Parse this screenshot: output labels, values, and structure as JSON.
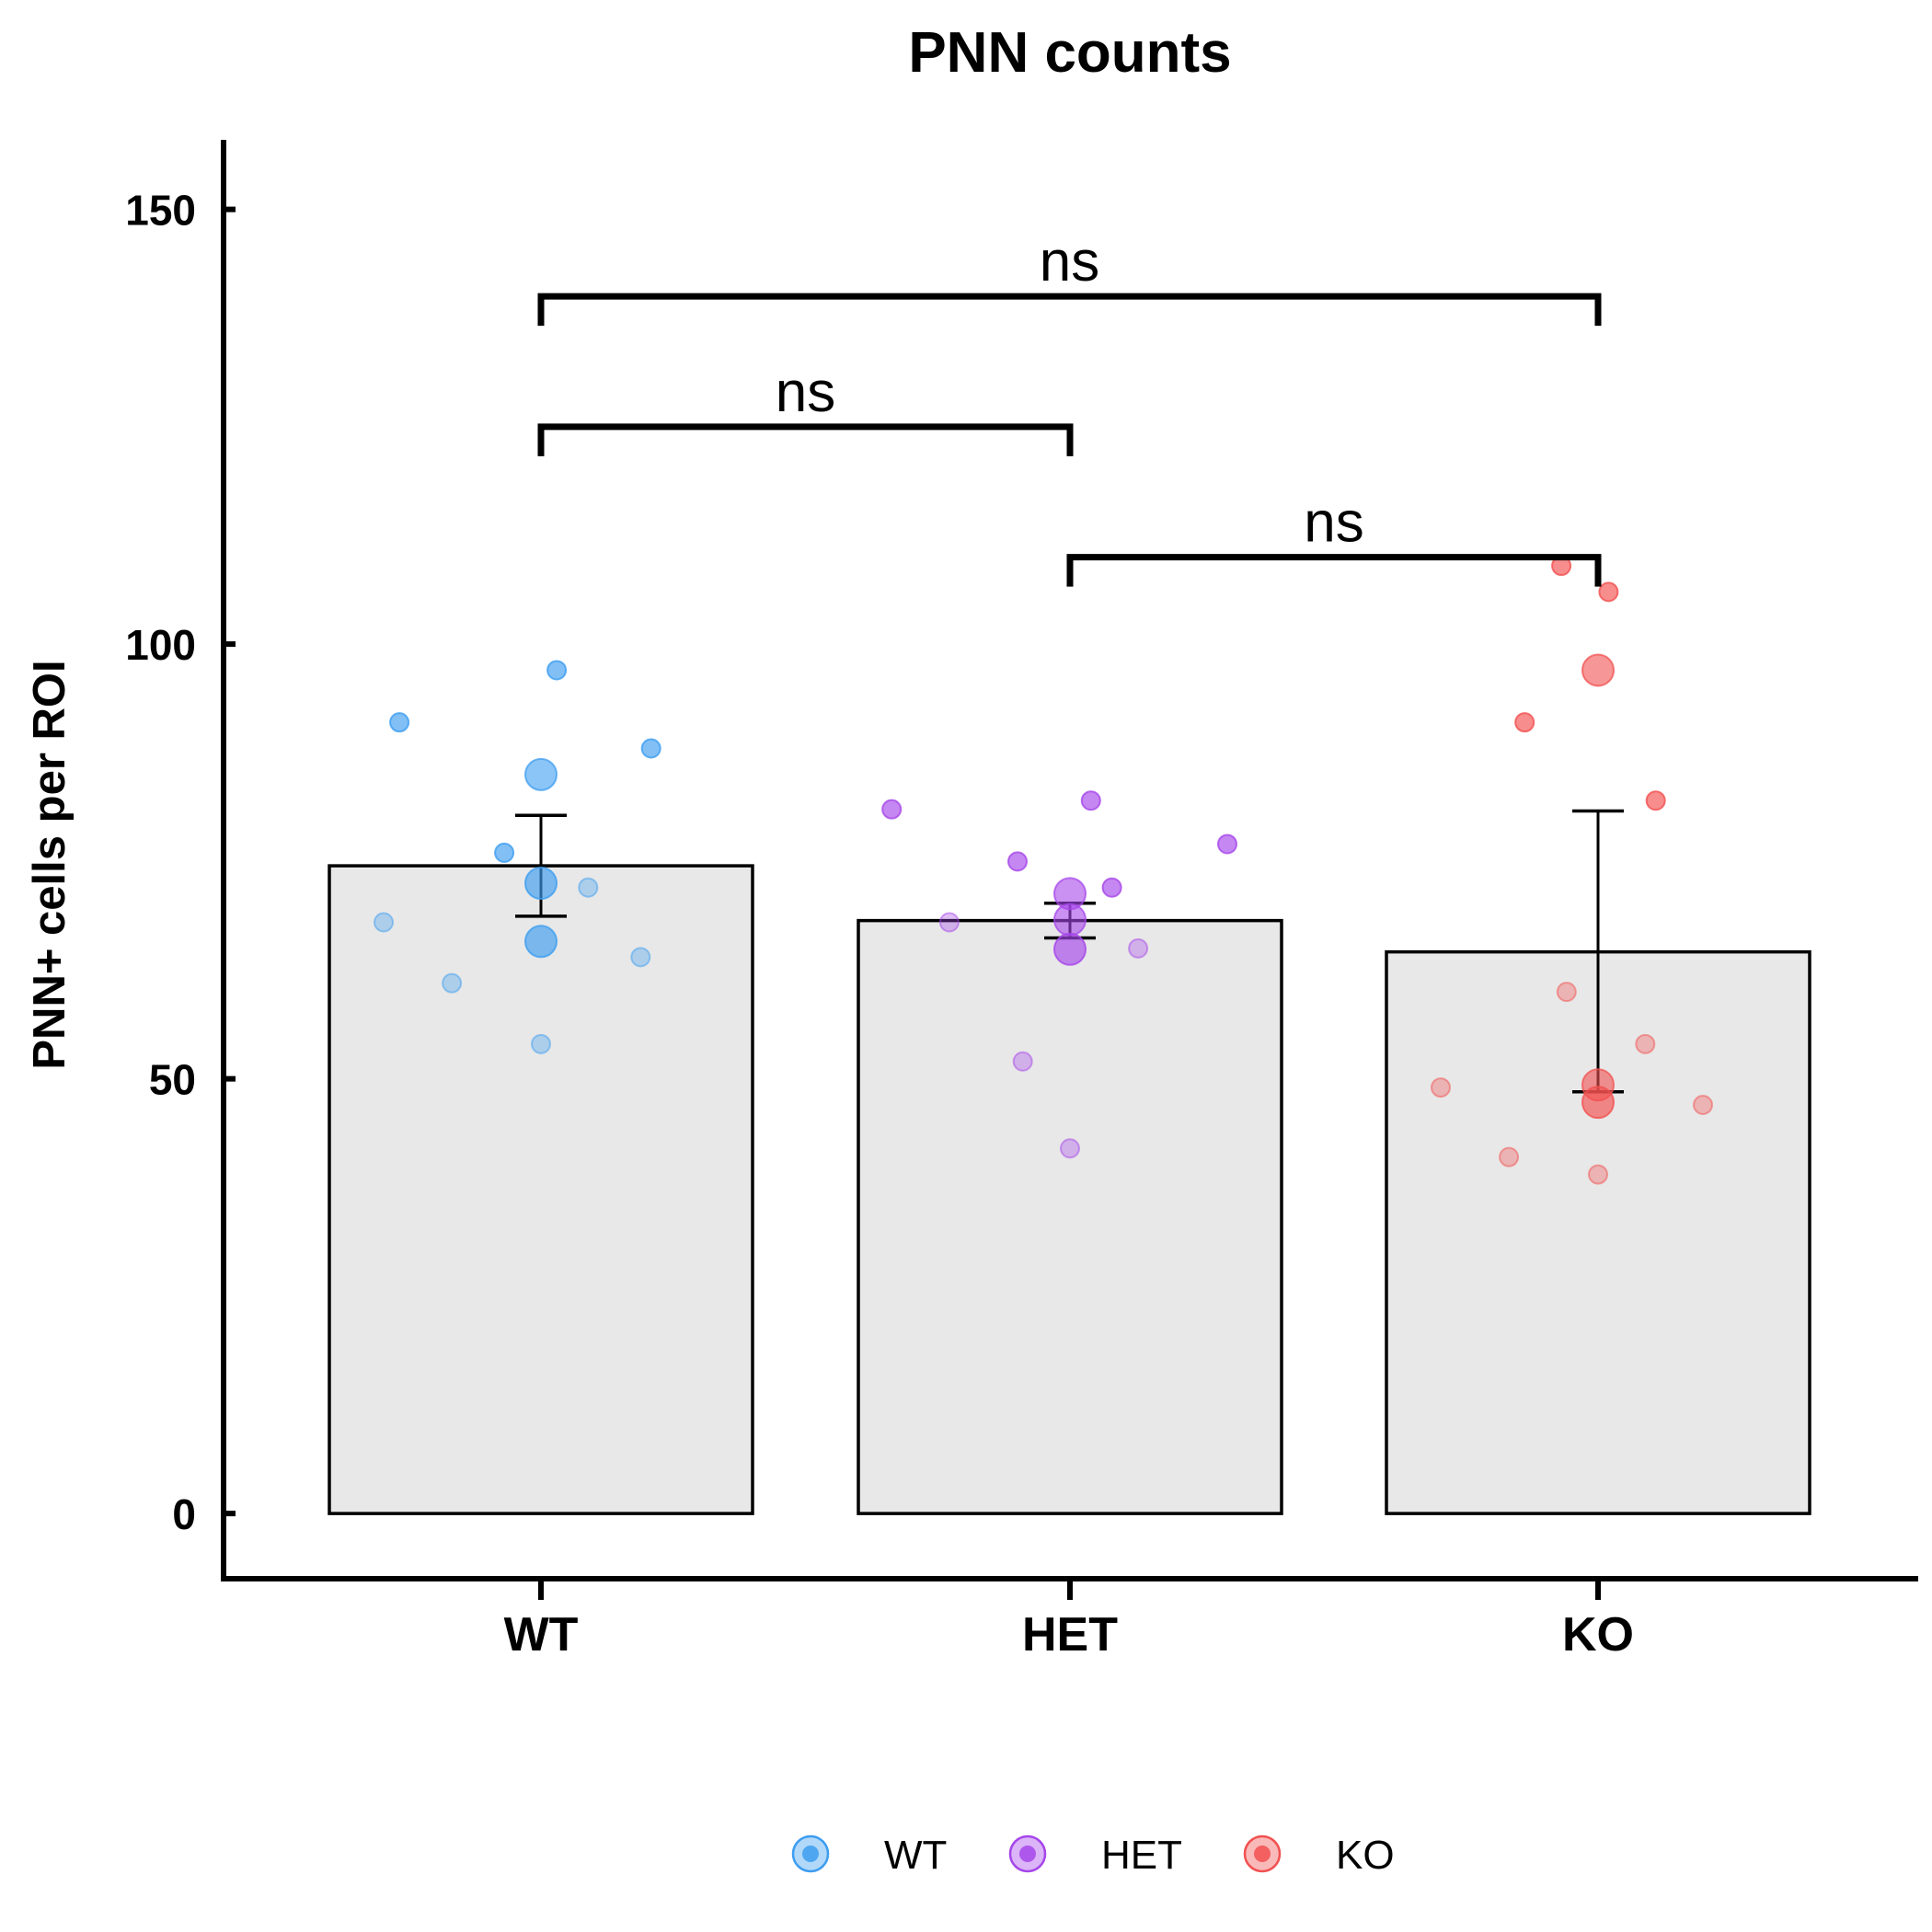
{
  "chart_data": {
    "type": "bar",
    "title": "PNN counts",
    "xlabel": "",
    "ylabel": "PNN+ cells per ROI",
    "ylim": [
      -7.5,
      158
    ],
    "yticks": [
      0,
      50,
      100,
      150
    ],
    "categories": [
      "WT",
      "HET",
      "KO"
    ],
    "colors": {
      "WT": "#3d9df0",
      "HET": "#a646ea",
      "KO": "#f25050"
    },
    "bar_fill": "#e8e8e8",
    "bars": [
      {
        "name": "WT",
        "mean": 74.5,
        "err_low": 68.7,
        "err_high": 80.3
      },
      {
        "name": "HET",
        "mean": 68.2,
        "err_low": 66.2,
        "err_high": 70.2
      },
      {
        "name": "KO",
        "mean": 64.6,
        "err_low": 48.5,
        "err_high": 80.8
      }
    ],
    "points": [
      {
        "group": "WT",
        "x": -0.27,
        "y": 91,
        "big": false,
        "opacity": 0.65
      },
      {
        "group": "WT",
        "x": 0.03,
        "y": 97,
        "big": false,
        "opacity": 0.65
      },
      {
        "group": "WT",
        "x": 0.21,
        "y": 88,
        "big": false,
        "opacity": 0.65
      },
      {
        "group": "WT",
        "x": 0.0,
        "y": 85,
        "big": true,
        "opacity": 0.6
      },
      {
        "group": "WT",
        "x": -0.07,
        "y": 76,
        "big": false,
        "opacity": 0.65
      },
      {
        "group": "WT",
        "x": 0.0,
        "y": 72.5,
        "big": true,
        "opacity": 0.65
      },
      {
        "group": "WT",
        "x": 0.09,
        "y": 72,
        "big": false,
        "opacity": 0.35
      },
      {
        "group": "WT",
        "x": -0.3,
        "y": 68,
        "big": false,
        "opacity": 0.35
      },
      {
        "group": "WT",
        "x": 0.0,
        "y": 65.8,
        "big": true,
        "opacity": 0.65
      },
      {
        "group": "WT",
        "x": 0.19,
        "y": 64,
        "big": false,
        "opacity": 0.35
      },
      {
        "group": "WT",
        "x": -0.17,
        "y": 61,
        "big": false,
        "opacity": 0.35
      },
      {
        "group": "WT",
        "x": 0.0,
        "y": 54,
        "big": false,
        "opacity": 0.35
      },
      {
        "group": "HET",
        "x": -0.34,
        "y": 81,
        "big": false,
        "opacity": 0.65
      },
      {
        "group": "HET",
        "x": 0.04,
        "y": 82,
        "big": false,
        "opacity": 0.65
      },
      {
        "group": "HET",
        "x": 0.3,
        "y": 77,
        "big": false,
        "opacity": 0.65
      },
      {
        "group": "HET",
        "x": -0.1,
        "y": 75,
        "big": false,
        "opacity": 0.65
      },
      {
        "group": "HET",
        "x": 0.08,
        "y": 72,
        "big": false,
        "opacity": 0.65
      },
      {
        "group": "HET",
        "x": 0.0,
        "y": 71.3,
        "big": true,
        "opacity": 0.6
      },
      {
        "group": "HET",
        "x": 0.0,
        "y": 68.3,
        "big": true,
        "opacity": 0.6
      },
      {
        "group": "HET",
        "x": -0.23,
        "y": 68,
        "big": false,
        "opacity": 0.35
      },
      {
        "group": "HET",
        "x": 0.0,
        "y": 64.9,
        "big": true,
        "opacity": 0.65
      },
      {
        "group": "HET",
        "x": 0.13,
        "y": 65,
        "big": false,
        "opacity": 0.35
      },
      {
        "group": "HET",
        "x": -0.09,
        "y": 52,
        "big": false,
        "opacity": 0.35
      },
      {
        "group": "HET",
        "x": 0.0,
        "y": 42,
        "big": false,
        "opacity": 0.35
      },
      {
        "group": "KO",
        "x": -0.07,
        "y": 109,
        "big": false,
        "opacity": 0.65
      },
      {
        "group": "KO",
        "x": 0.02,
        "y": 106,
        "big": false,
        "opacity": 0.65
      },
      {
        "group": "KO",
        "x": 0.0,
        "y": 97,
        "big": true,
        "opacity": 0.6
      },
      {
        "group": "KO",
        "x": -0.14,
        "y": 91,
        "big": false,
        "opacity": 0.65
      },
      {
        "group": "KO",
        "x": 0.11,
        "y": 82,
        "big": false,
        "opacity": 0.65
      },
      {
        "group": "KO",
        "x": -0.06,
        "y": 60,
        "big": false,
        "opacity": 0.35
      },
      {
        "group": "KO",
        "x": 0.09,
        "y": 54,
        "big": false,
        "opacity": 0.35
      },
      {
        "group": "KO",
        "x": -0.3,
        "y": 49,
        "big": false,
        "opacity": 0.35
      },
      {
        "group": "KO",
        "x": 0.0,
        "y": 49.3,
        "big": true,
        "opacity": 0.6
      },
      {
        "group": "KO",
        "x": 0.0,
        "y": 47.3,
        "big": true,
        "opacity": 0.65
      },
      {
        "group": "KO",
        "x": 0.2,
        "y": 47,
        "big": false,
        "opacity": 0.35
      },
      {
        "group": "KO",
        "x": -0.17,
        "y": 41,
        "big": false,
        "opacity": 0.35
      },
      {
        "group": "KO",
        "x": 0.0,
        "y": 39,
        "big": false,
        "opacity": 0.35
      }
    ],
    "brackets": [
      {
        "from": "WT",
        "to": "KO",
        "y": 140,
        "label": "ns"
      },
      {
        "from": "WT",
        "to": "HET",
        "y": 125,
        "label": "ns"
      },
      {
        "from": "HET",
        "to": "KO",
        "y": 110,
        "label": "ns"
      }
    ],
    "legend": {
      "position": "bottom",
      "entries": [
        "WT",
        "HET",
        "KO"
      ]
    }
  }
}
